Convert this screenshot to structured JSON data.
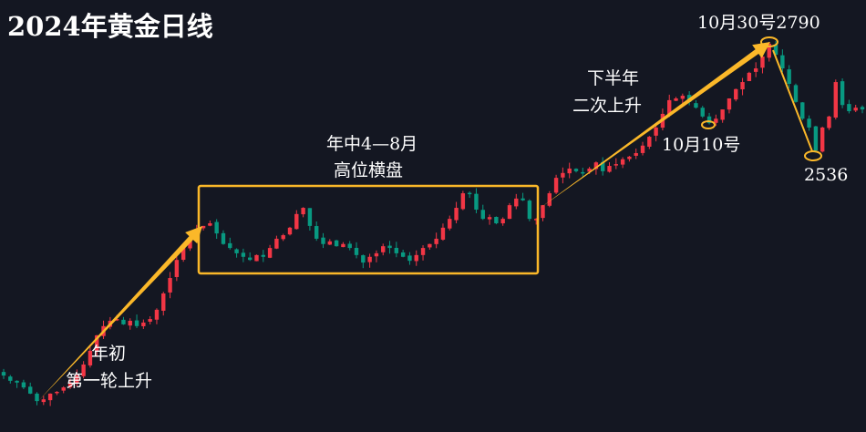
{
  "chart_data": {
    "type": "candlestick",
    "title": "2024年黄金日线",
    "ylim": [
      1904,
      2883
    ],
    "grid": false,
    "up_color": "#f23645",
    "down_color": "#089981",
    "annotation_color": "#fbb829",
    "closes": [
      2032,
      2020,
      2016,
      2005,
      1991,
      1974,
      1978,
      1991,
      1995,
      2005,
      2016,
      2032,
      2057,
      2088,
      2123,
      2144,
      2156,
      2160,
      2148,
      2156,
      2144,
      2152,
      2160,
      2181,
      2218,
      2253,
      2294,
      2321,
      2342,
      2363,
      2371,
      2377,
      2354,
      2330,
      2321,
      2309,
      2301,
      2294,
      2305,
      2301,
      2321,
      2342,
      2350,
      2367,
      2398,
      2412,
      2371,
      2342,
      2330,
      2336,
      2325,
      2330,
      2321,
      2305,
      2288,
      2301,
      2309,
      2325,
      2321,
      2309,
      2301,
      2292,
      2305,
      2321,
      2330,
      2342,
      2367,
      2387,
      2412,
      2445,
      2445,
      2408,
      2387,
      2391,
      2377,
      2387,
      2418,
      2433,
      2429,
      2387,
      2387,
      2418,
      2445,
      2480,
      2491,
      2501,
      2495,
      2491,
      2501,
      2515,
      2495,
      2507,
      2511,
      2522,
      2528,
      2536,
      2553,
      2573,
      2594,
      2625,
      2656,
      2660,
      2666,
      2652,
      2639,
      2619,
      2604,
      2614,
      2635,
      2660,
      2681,
      2697,
      2718,
      2728,
      2755,
      2784,
      2759,
      2728,
      2693,
      2652,
      2614,
      2594,
      2542,
      2594,
      2619,
      2697,
      2645,
      2631,
      2639,
      2635
    ],
    "annotations": {
      "phase1": [
        "年初",
        "第一轮上升"
      ],
      "phase2": [
        "年中4—8月",
        "高位横盘"
      ],
      "phase3": [
        "下半年",
        "二次上升"
      ],
      "low_oct10": "10月10号",
      "peak": "10月30号2790",
      "pullback_low": "2536"
    }
  }
}
